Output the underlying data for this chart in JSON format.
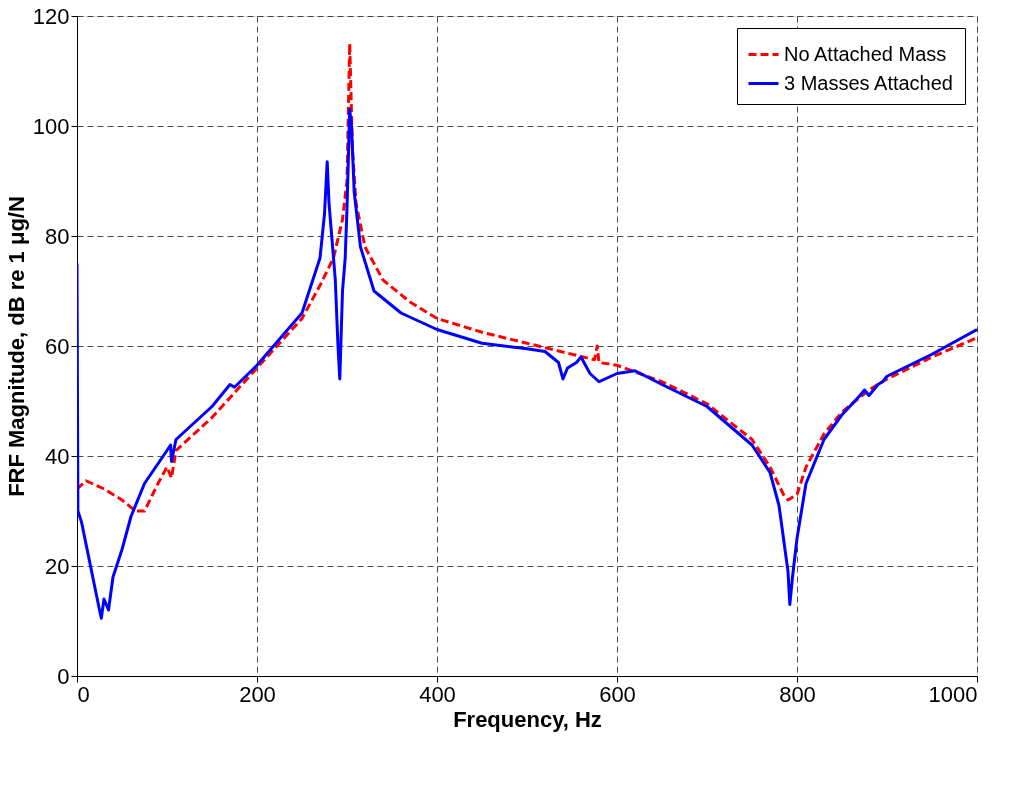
{
  "chart_data": {
    "type": "line",
    "xlabel": "Frequency, Hz",
    "ylabel": "FRF Magnitude, dB re 1 μg/N",
    "xlim": [
      0,
      1000
    ],
    "ylim": [
      0,
      120
    ],
    "xticks": [
      0,
      200,
      400,
      600,
      800,
      1000
    ],
    "yticks": [
      0,
      20,
      40,
      60,
      80,
      100,
      120
    ],
    "grid": true,
    "legend": "top right",
    "marker": "none",
    "series": [
      {
        "name": "No Attached Mass",
        "color": "#ff0000",
        "line_style": "dashed",
        "x": [
          0,
          10,
          30,
          50,
          65,
          75,
          90,
          100,
          105,
          110,
          150,
          200,
          250,
          270,
          285,
          295,
          300,
          303,
          306,
          310,
          320,
          340,
          370,
          400,
          450,
          500,
          550,
          575,
          578,
          580,
          600,
          650,
          700,
          750,
          770,
          785,
          790,
          800,
          810,
          830,
          850,
          880,
          900,
          950,
          1000
        ],
        "values": [
          34,
          35.5,
          34,
          32,
          30,
          30,
          35,
          38,
          36,
          41,
          47,
          56,
          65,
          71,
          76,
          83,
          90,
          115,
          96,
          86,
          78,
          72,
          68,
          65,
          62.5,
          60.5,
          58.5,
          57.5,
          60,
          57,
          56.5,
          53.5,
          49.5,
          43,
          38,
          33,
          32,
          33,
          38,
          44,
          48,
          52,
          54,
          58,
          61.5
        ]
      },
      {
        "name": "3 Masses Attached",
        "color": "#0000ff",
        "line_style": "solid",
        "x": [
          0,
          1,
          5,
          15,
          20,
          25,
          27,
          30,
          35,
          40,
          50,
          60,
          75,
          100,
          104,
          105,
          110,
          150,
          170,
          175,
          200,
          250,
          270,
          275,
          278,
          280,
          283,
          287,
          290,
          292,
          295,
          298,
          300,
          303,
          305,
          308,
          315,
          330,
          360,
          400,
          450,
          500,
          520,
          535,
          540,
          545,
          555,
          560,
          570,
          580,
          600,
          620,
          650,
          700,
          750,
          770,
          780,
          785,
          790,
          792,
          795,
          800,
          810,
          830,
          850,
          870,
          875,
          880,
          890,
          895,
          900,
          950,
          1000
        ],
        "values": [
          75,
          30,
          28,
          20,
          16,
          12,
          10.5,
          14,
          12,
          18,
          23,
          29,
          35,
          41,
          42,
          39,
          43,
          49,
          53,
          52.5,
          56.5,
          66,
          76,
          84,
          93.5,
          86,
          80,
          72,
          60,
          54,
          70,
          76,
          85,
          103,
          100,
          88,
          78,
          70,
          66,
          63,
          60.5,
          59.5,
          59,
          57,
          54,
          56,
          57,
          58,
          55,
          53.5,
          55,
          55.5,
          53,
          49,
          42,
          37,
          31,
          25,
          19,
          13,
          18,
          25,
          35,
          43,
          47.5,
          51,
          52,
          51,
          53,
          53.5,
          54.5,
          58.5,
          63
        ]
      }
    ]
  }
}
